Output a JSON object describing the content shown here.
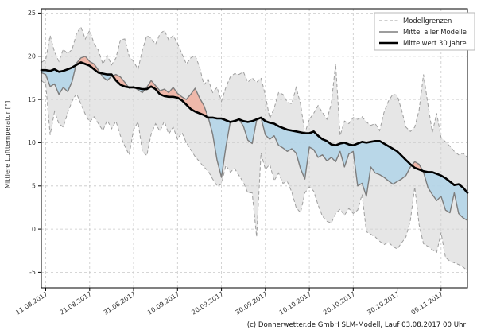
{
  "footer": {
    "text": "(c) Donnerwetter.de GmbH SLM-Modell, Lauf 03.08.2017 00 Uhr"
  },
  "chart_data": {
    "type": "line",
    "title": "",
    "xlabel": "",
    "ylabel": "Mittlere Lufttemperatur [°]",
    "ylim": [
      -6.8,
      25.5
    ],
    "yticks": [
      25,
      20,
      15,
      10,
      5,
      0,
      -5
    ],
    "grid": true,
    "x_axis": {
      "total_days": 97,
      "tick_days": [
        1,
        11,
        21,
        31,
        41,
        51,
        61,
        71,
        81,
        91
      ],
      "tick_labels": [
        "11.08.2017",
        "21.08.2017",
        "31.08.2017",
        "10.09.2017",
        "20.09.2017",
        "30.09.2017",
        "10.10.2017",
        "20.10.2017",
        "30.10.2017",
        "09.11.2017"
      ]
    },
    "legend": {
      "position": "upper right",
      "entries": [
        {
          "label": "Modellgrenzen",
          "style": "dashed-gray"
        },
        {
          "label": "Mittel aller Modelle",
          "style": "solid-gray"
        },
        {
          "label": "Mittelwert 30 Jahre",
          "style": "solid-black-thick"
        }
      ]
    },
    "colors": {
      "band_fill": "#d2d2d2",
      "bound_line": "#9e9e9e",
      "model_mean_line": "#7d7d7d",
      "mean30_line": "#000000",
      "above_fill": "#f0b2a3",
      "below_fill": "#b4d5e8",
      "grid": "#c8c8c8",
      "spine": "#000000",
      "tick_text": "#333333",
      "legend_border": "#b3b3b3"
    },
    "series": [
      {
        "name": "Modellgrenzen (obere Grenze)",
        "role": "upper_bound",
        "values": [
          19.3,
          19.6,
          22.4,
          20.5,
          19.4,
          20.8,
          20.3,
          20.8,
          22.6,
          23.4,
          22.0,
          23.0,
          21.5,
          20.7,
          19.1,
          20.1,
          19.0,
          19.8,
          21.9,
          22.0,
          20.0,
          19.4,
          18.5,
          20.7,
          22.4,
          22.1,
          21.4,
          22.6,
          23.0,
          21.9,
          22.4,
          21.5,
          20.3,
          19.1,
          19.8,
          20.1,
          18.8,
          16.7,
          17.3,
          15.8,
          16.4,
          14.8,
          16.4,
          17.6,
          18.0,
          17.9,
          18.2,
          17.0,
          17.5,
          17.0,
          17.5,
          15.5,
          12.8,
          14.0,
          15.8,
          15.6,
          14.7,
          14.5,
          16.4,
          14.5,
          11.1,
          12.7,
          13.4,
          14.3,
          13.5,
          12.7,
          14.5,
          19.1,
          10.8,
          12.5,
          12.2,
          12.9,
          12.7,
          13.0,
          12.4,
          12.0,
          12.2,
          11.4,
          13.5,
          14.8,
          15.6,
          15.5,
          13.8,
          11.8,
          11.3,
          11.8,
          13.8,
          17.9,
          14.4,
          11.2,
          13.4,
          10.6,
          10.1,
          9.6,
          9.0,
          8.6,
          8.8,
          8.3
        ]
      },
      {
        "name": "Modellgrenzen (untere Grenze)",
        "role": "lower_bound",
        "values": [
          17.2,
          16.8,
          10.9,
          13.6,
          12.2,
          11.8,
          13.5,
          14.8,
          15.7,
          14.5,
          13.3,
          12.4,
          13.0,
          12.2,
          11.4,
          12.6,
          11.6,
          12.5,
          10.8,
          9.6,
          8.6,
          11.5,
          12.4,
          9.0,
          8.5,
          11.0,
          12.2,
          11.3,
          12.5,
          11.0,
          11.8,
          10.4,
          11.2,
          10.0,
          9.2,
          8.4,
          7.8,
          7.2,
          6.7,
          5.8,
          5.0,
          5.2,
          7.4,
          6.6,
          7.0,
          6.2,
          5.4,
          4.2,
          4.2,
          -0.9,
          8.8,
          6.9,
          7.5,
          5.6,
          6.5,
          5.3,
          5.5,
          4.3,
          2.5,
          1.9,
          4.2,
          4.9,
          4.4,
          2.8,
          1.5,
          0.9,
          0.7,
          1.8,
          2.3,
          1.6,
          2.4,
          1.8,
          2.2,
          4.0,
          -0.3,
          -0.6,
          -0.9,
          -1.4,
          -1.8,
          -1.5,
          -2.0,
          -2.3,
          -1.6,
          -0.9,
          1.0,
          4.9,
          0.5,
          -1.7,
          -2.0,
          -2.4,
          -2.7,
          -0.4,
          -3.3,
          -3.7,
          -3.9,
          -4.1,
          -4.4,
          -4.8
        ]
      },
      {
        "name": "Mittel aller Modelle",
        "role": "model_mean",
        "values": [
          18.1,
          17.9,
          16.5,
          16.8,
          15.6,
          16.4,
          15.9,
          17.1,
          19.2,
          19.8,
          20.0,
          19.4,
          19.1,
          18.4,
          17.6,
          17.2,
          17.7,
          17.9,
          17.6,
          17.0,
          16.3,
          16.5,
          16.1,
          15.8,
          16.4,
          17.2,
          16.6,
          16.0,
          16.2,
          15.8,
          16.4,
          15.7,
          15.3,
          15.0,
          15.6,
          16.3,
          15.2,
          14.3,
          12.9,
          11.0,
          8.0,
          6.0,
          9.5,
          12.4,
          12.6,
          12.7,
          11.9,
          10.3,
          9.9,
          12.6,
          12.9,
          10.9,
          10.4,
          10.8,
          9.7,
          9.4,
          9.0,
          9.3,
          8.8,
          7.0,
          5.8,
          9.5,
          9.2,
          8.3,
          8.6,
          7.9,
          8.3,
          7.8,
          9.0,
          7.2,
          8.7,
          9.0,
          5.0,
          5.3,
          3.8,
          7.2,
          6.5,
          6.3,
          6.0,
          5.6,
          5.2,
          5.5,
          5.8,
          6.2,
          7.2,
          7.8,
          7.5,
          6.6,
          4.8,
          4.0,
          3.3,
          3.8,
          2.2,
          1.9,
          4.2,
          1.8,
          1.3,
          1.0
        ]
      },
      {
        "name": "Mittelwert 30 Jahre",
        "role": "mean_30yr",
        "values": [
          18.4,
          18.4,
          18.3,
          18.5,
          18.2,
          18.3,
          18.5,
          18.7,
          19.0,
          19.3,
          19.1,
          18.9,
          18.5,
          18.1,
          18.0,
          17.9,
          17.9,
          17.2,
          16.7,
          16.5,
          16.4,
          16.4,
          16.3,
          16.2,
          16.2,
          16.5,
          16.2,
          15.6,
          15.4,
          15.3,
          15.3,
          15.2,
          14.9,
          14.4,
          13.9,
          13.6,
          13.4,
          13.2,
          12.9,
          12.9,
          12.8,
          12.8,
          12.6,
          12.4,
          12.5,
          12.7,
          12.5,
          12.4,
          12.5,
          12.7,
          12.9,
          12.5,
          12.3,
          12.2,
          11.9,
          11.7,
          11.5,
          11.4,
          11.3,
          11.2,
          11.1,
          11.1,
          11.3,
          10.8,
          10.4,
          10.2,
          9.8,
          9.7,
          9.9,
          10.0,
          9.8,
          9.7,
          9.9,
          10.1,
          10.0,
          10.1,
          10.2,
          10.2,
          9.9,
          9.6,
          9.3,
          9.0,
          8.5,
          8.0,
          7.5,
          7.1,
          6.9,
          6.7,
          6.6,
          6.6,
          6.4,
          6.2,
          5.9,
          5.5,
          5.1,
          5.2,
          4.8,
          4.2
        ]
      }
    ]
  }
}
